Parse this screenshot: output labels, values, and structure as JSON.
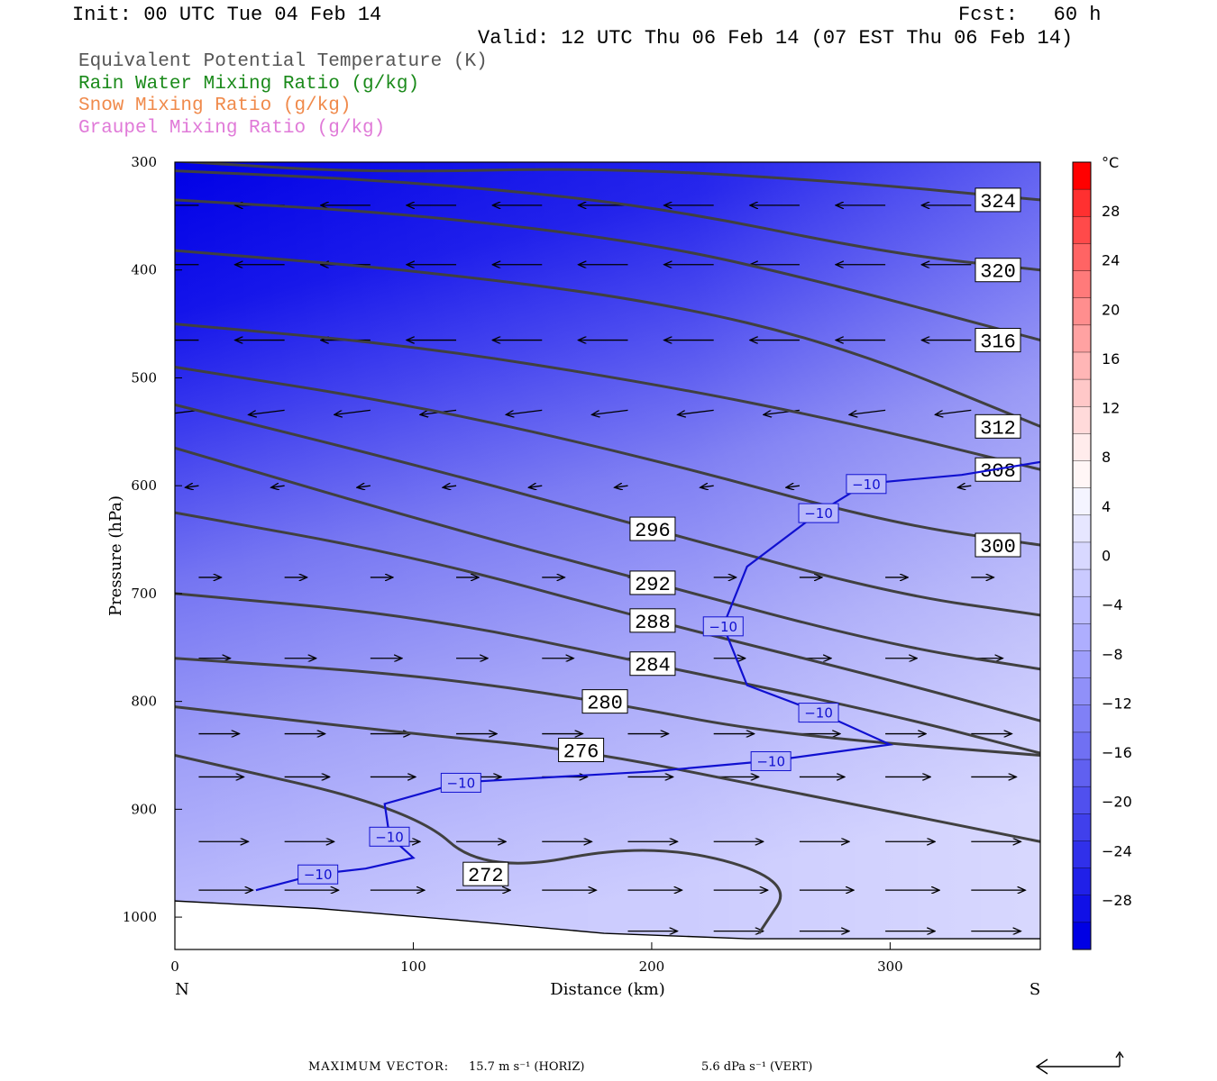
{
  "header": {
    "init": "Init: 00 UTC Tue 04 Feb 14",
    "fcst": "Fcst:   60 h",
    "valid": "Valid: 12 UTC Thu 06 Feb 14 (07 EST Thu 06 Feb 14)"
  },
  "legend": [
    {
      "text": "Equivalent Potential Temperature (K)",
      "color": "#555555"
    },
    {
      "text": "Rain Water Mixing Ratio (g/kg)",
      "color": "#1a8a1a"
    },
    {
      "text": "Snow Mixing Ratio (g/kg)",
      "color": "#f08a4b"
    },
    {
      "text": "Graupel Mixing Ratio (g/kg)",
      "color": "#e07ad8"
    }
  ],
  "footer": {
    "label": "MAXIMUM VECTOR:",
    "horiz": "15.7 m s⁻¹ (HORIZ)",
    "vert": "5.6 dPa s⁻¹ (VERT)"
  },
  "chart_data": {
    "type": "cross-section",
    "xlabel": "Distance (km)",
    "ylabel": "Pressure (hPa)",
    "xlim": [
      0,
      363
    ],
    "ylim": [
      1030,
      300
    ],
    "x_ticks": [
      "0",
      "100",
      "200",
      "300"
    ],
    "y_ticks": [
      "300",
      "400",
      "500",
      "600",
      "700",
      "800",
      "900",
      "1000"
    ],
    "x_end_labels": {
      "left": "N",
      "right": "S"
    },
    "colorbar": {
      "unit": "°C",
      "labels": [
        "28",
        "24",
        "20",
        "16",
        "12",
        "8",
        "4",
        "0",
        "−4",
        "−8",
        "−12",
        "−16",
        "−20",
        "−24",
        "−28"
      ],
      "colors_top_to_bottom": [
        "#ff0000",
        "#ff3030",
        "#ff4a4a",
        "#ff6464",
        "#ff7a7a",
        "#ff8e8e",
        "#ffa2a2",
        "#ffb6b6",
        "#ffc8c8",
        "#ffdada",
        "#ffecec",
        "#fff6f6",
        "#f4f4ff",
        "#e6e6ff",
        "#d8d8ff",
        "#cacaff",
        "#bcbcff",
        "#aeaefe",
        "#9f9ffc",
        "#9090f9",
        "#8080f6",
        "#7070f3",
        "#6060f0",
        "#5050ee",
        "#4040ec",
        "#3030ea",
        "#2020e8",
        "#1010e6",
        "#0000e4"
      ]
    },
    "theta_e_contours": [
      {
        "value": 324,
        "label": "324",
        "points": [
          [
            0,
            299
          ],
          [
            80,
            310
          ],
          [
            180,
            305
          ],
          [
            280,
            318
          ],
          [
            363,
            335
          ]
        ]
      },
      {
        "value": 320,
        "label": "320",
        "points": [
          [
            0,
            308
          ],
          [
            100,
            318
          ],
          [
            200,
            340
          ],
          [
            300,
            385
          ],
          [
            363,
            400
          ]
        ]
      },
      {
        "value": 316,
        "label": "316",
        "points": [
          [
            0,
            335
          ],
          [
            100,
            348
          ],
          [
            200,
            375
          ],
          [
            270,
            410
          ],
          [
            363,
            465
          ]
        ]
      },
      {
        "value": 312,
        "label": "312",
        "points": [
          [
            0,
            382
          ],
          [
            100,
            400
          ],
          [
            200,
            428
          ],
          [
            280,
            470
          ],
          [
            363,
            545
          ]
        ]
      },
      {
        "value": 308,
        "label": "308",
        "points": [
          [
            0,
            450
          ],
          [
            100,
            470
          ],
          [
            200,
            505
          ],
          [
            280,
            540
          ],
          [
            363,
            585
          ]
        ]
      },
      {
        "value": 300,
        "label": "300",
        "points": [
          [
            0,
            490
          ],
          [
            100,
            525
          ],
          [
            200,
            575
          ],
          [
            300,
            635
          ],
          [
            363,
            655
          ]
        ]
      },
      {
        "value": 296,
        "label": "296",
        "points": [
          [
            0,
            525
          ],
          [
            100,
            580
          ],
          [
            200,
            640
          ],
          [
            300,
            700
          ],
          [
            363,
            720
          ]
        ]
      },
      {
        "value": 292,
        "label": "292",
        "points": [
          [
            0,
            565
          ],
          [
            100,
            630
          ],
          [
            200,
            690
          ],
          [
            300,
            748
          ],
          [
            363,
            770
          ]
        ]
      },
      {
        "value": 288,
        "label": "288",
        "points": [
          [
            0,
            625
          ],
          [
            100,
            665
          ],
          [
            200,
            725
          ],
          [
            300,
            780
          ],
          [
            363,
            818
          ]
        ]
      },
      {
        "value": 284,
        "label": "284",
        "points": [
          [
            0,
            700
          ],
          [
            100,
            720
          ],
          [
            200,
            765
          ],
          [
            300,
            812
          ],
          [
            363,
            848
          ]
        ]
      },
      {
        "value": 280,
        "label": "280",
        "points": [
          [
            0,
            760
          ],
          [
            100,
            775
          ],
          [
            180,
            800
          ],
          [
            250,
            830
          ],
          [
            363,
            850
          ]
        ]
      },
      {
        "value": 276,
        "label": "276",
        "points": [
          [
            0,
            805
          ],
          [
            100,
            830
          ],
          [
            170,
            845
          ],
          [
            250,
            880
          ],
          [
            363,
            930
          ]
        ]
      },
      {
        "value": 272,
        "label": "272",
        "points": [
          [
            0,
            850
          ],
          [
            100,
            900
          ],
          [
            130,
            960
          ],
          [
            200,
            930
          ],
          [
            260,
            965
          ],
          [
            245,
            1015
          ]
        ]
      }
    ],
    "temperature_contour": {
      "value": -10,
      "label": "−10",
      "points": [
        [
          34,
          975
        ],
        [
          60,
          960
        ],
        [
          80,
          955
        ],
        [
          100,
          945
        ],
        [
          90,
          925
        ],
        [
          88,
          895
        ],
        [
          120,
          875
        ],
        [
          200,
          865
        ],
        [
          250,
          855
        ],
        [
          300,
          840
        ],
        [
          270,
          810
        ],
        [
          240,
          785
        ],
        [
          230,
          730
        ],
        [
          240,
          675
        ],
        [
          270,
          625
        ],
        [
          290,
          598
        ],
        [
          330,
          590
        ],
        [
          363,
          578
        ]
      ]
    }
  }
}
